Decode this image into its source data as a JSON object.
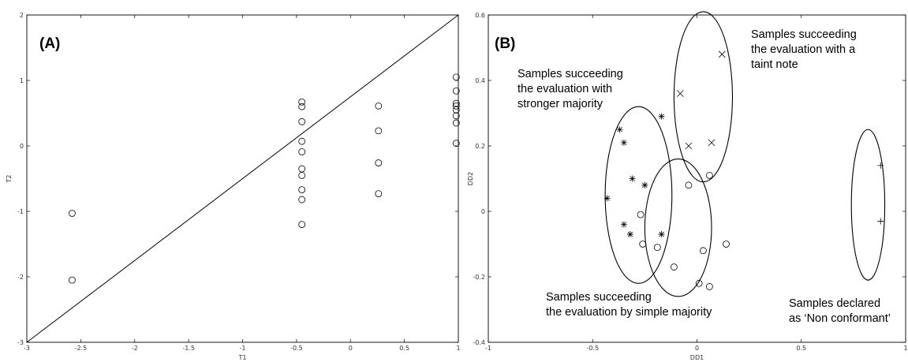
{
  "chart_data": [
    {
      "type": "scatter",
      "panel_label": "(A)",
      "xlabel": "T1",
      "ylabel": "T2",
      "xlim": [
        -3,
        1
      ],
      "ylim": [
        -3,
        2
      ],
      "xticks": [
        "-3",
        "-2.5",
        "-2",
        "-1.5",
        "-1",
        "-0.5",
        "0",
        "0.5",
        "1"
      ],
      "yticks": [
        "-3",
        "-2",
        "-1",
        "0",
        "1",
        "2"
      ],
      "reference_line": {
        "from": [
          -3,
          -3
        ],
        "to": [
          1,
          2
        ]
      },
      "series": [
        {
          "marker": "circle",
          "points": [
            [
              -2.58,
              -1.03
            ],
            [
              -2.58,
              -2.05
            ],
            [
              -0.45,
              0.67
            ],
            [
              -0.45,
              0.6
            ],
            [
              -0.45,
              0.37
            ],
            [
              -0.45,
              0.07
            ],
            [
              -0.45,
              -0.09
            ],
            [
              -0.45,
              -0.35
            ],
            [
              -0.45,
              -0.45
            ],
            [
              -0.45,
              -0.67
            ],
            [
              -0.45,
              -0.82
            ],
            [
              -0.45,
              -1.2
            ],
            [
              0.26,
              0.61
            ],
            [
              0.26,
              0.23
            ],
            [
              0.26,
              -0.26
            ],
            [
              0.26,
              -0.73
            ],
            [
              0.98,
              1.05
            ],
            [
              0.98,
              0.84
            ],
            [
              0.98,
              0.65
            ],
            [
              0.98,
              0.61
            ],
            [
              0.98,
              0.55
            ],
            [
              0.98,
              0.46
            ],
            [
              0.98,
              0.35
            ],
            [
              0.98,
              0.04
            ]
          ]
        }
      ]
    },
    {
      "type": "scatter",
      "panel_label": "(B)",
      "xlabel": "DD1",
      "ylabel": "DD2",
      "xlim": [
        -1,
        1
      ],
      "ylim": [
        -0.4,
        0.6
      ],
      "xticks": [
        "-1",
        "-0.5",
        "0",
        "0.5",
        "1"
      ],
      "yticks": [
        "-0.4",
        "-0.2",
        "0",
        "0.2",
        "0.4",
        "0.6"
      ],
      "series": [
        {
          "marker": "asterisk",
          "points": [
            [
              -0.43,
              0.04
            ],
            [
              -0.37,
              0.25
            ],
            [
              -0.35,
              0.21
            ],
            [
              -0.35,
              -0.04
            ],
            [
              -0.31,
              0.1
            ],
            [
              -0.32,
              -0.07
            ],
            [
              -0.25,
              0.08
            ],
            [
              -0.17,
              0.29
            ],
            [
              -0.17,
              -0.07
            ]
          ]
        },
        {
          "marker": "x",
          "points": [
            [
              -0.08,
              0.36
            ],
            [
              -0.04,
              0.2
            ],
            [
              0.07,
              0.21
            ],
            [
              0.12,
              0.48
            ]
          ]
        },
        {
          "marker": "circle",
          "points": [
            [
              -0.27,
              -0.01
            ],
            [
              -0.26,
              -0.1
            ],
            [
              -0.19,
              -0.11
            ],
            [
              -0.11,
              -0.17
            ],
            [
              -0.04,
              0.08
            ],
            [
              0.01,
              -0.22
            ],
            [
              0.03,
              -0.12
            ],
            [
              0.06,
              -0.23
            ],
            [
              0.06,
              0.11
            ],
            [
              0.14,
              -0.1
            ]
          ]
        },
        {
          "marker": "plus",
          "points": [
            [
              0.88,
              0.14
            ],
            [
              0.88,
              -0.03
            ]
          ]
        }
      ],
      "groups": [
        {
          "text": [
            "Samples succeeding",
            "the evaluation with",
            "stronger majority"
          ],
          "center": [
            -0.28,
            0.05
          ],
          "radii": [
            0.16,
            0.27
          ]
        },
        {
          "text": [
            "Samples succeeding",
            "the evaluation with a",
            "taint note"
          ],
          "center": [
            0.03,
            0.35
          ],
          "radii": [
            0.14,
            0.26
          ]
        },
        {
          "text": [
            "Samples succeeding",
            "the evaluation by simple majority"
          ],
          "center": [
            -0.09,
            -0.05
          ],
          "radii": [
            0.16,
            0.21
          ]
        },
        {
          "text": [
            "Samples declared",
            "as ‘Non conformant’"
          ],
          "center": [
            0.82,
            0.02
          ],
          "radii": [
            0.08,
            0.23
          ]
        }
      ]
    }
  ]
}
